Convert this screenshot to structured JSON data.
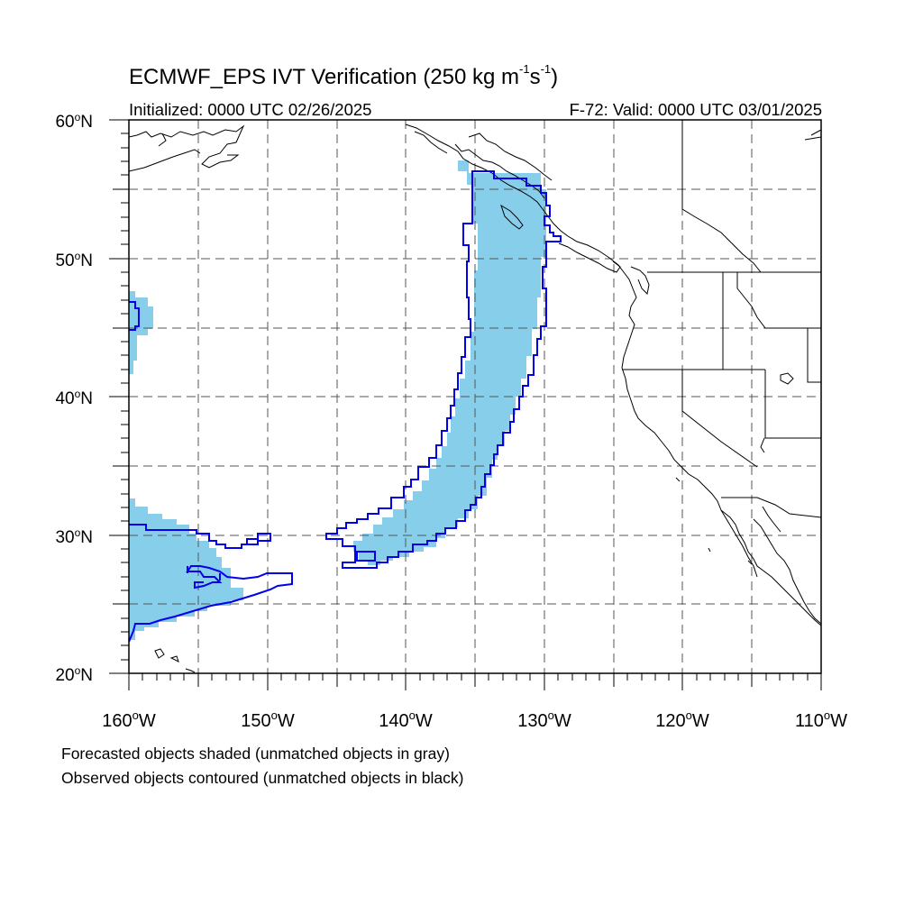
{
  "header": {
    "title_main": "ECMWF_EPS IVT Verification (250 kg m",
    "title_sup1": "-1",
    "title_mid": "s",
    "title_sup2": "-1",
    "title_end": ")",
    "initialized": "Initialized: 0000 UTC 02/26/2025",
    "valid": "F-72: Valid: 0000 UTC 03/01/2025"
  },
  "axes": {
    "y_labels": [
      "60",
      "50",
      "40",
      "30",
      "20"
    ],
    "x_labels": [
      "160",
      "150",
      "140",
      "130",
      "120",
      "110"
    ],
    "lat_suffix": "N",
    "lon_suffix": "W",
    "degree": "o"
  },
  "notes": {
    "line1": "Forecasted objects shaded (unmatched objects in gray)",
    "line2": "Observed objects contoured (unmatched objects in black)"
  },
  "map_extent": {
    "lon_min": -160,
    "lon_max": -110,
    "lat_min": 20,
    "lat_max": 60
  },
  "colors": {
    "forecast_fill": "#87ceeb",
    "observed_contour": "#0000ee",
    "coastline": "#000000",
    "grid": "#555555"
  }
}
